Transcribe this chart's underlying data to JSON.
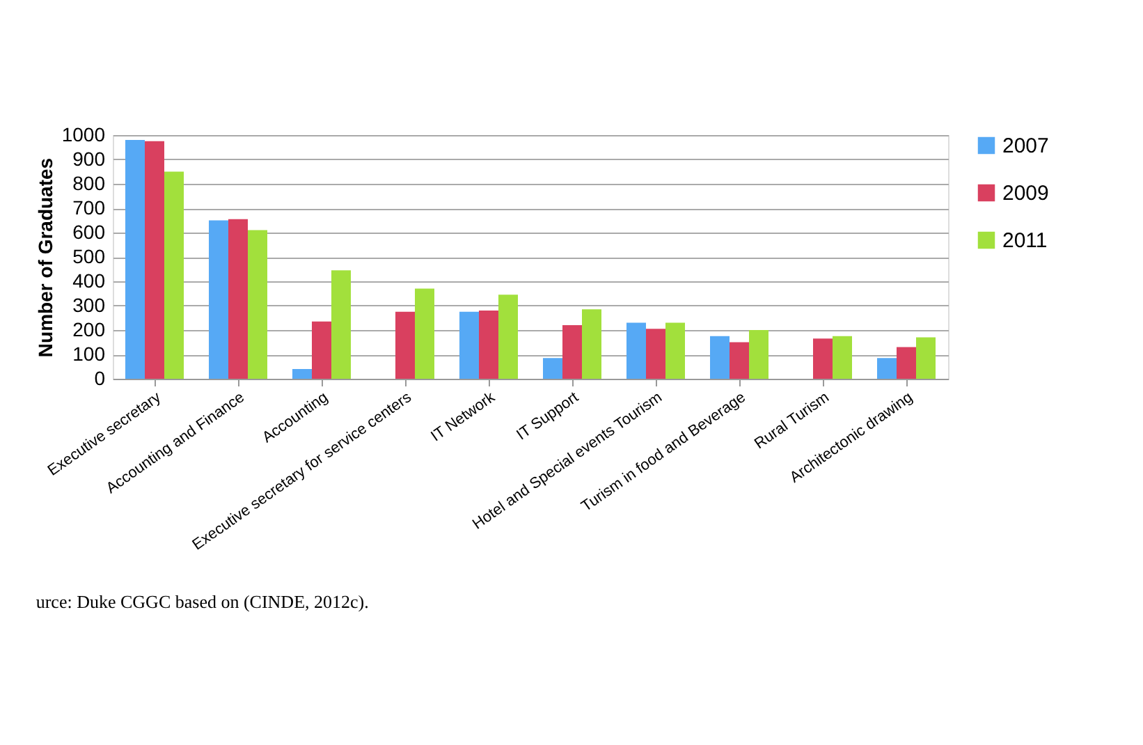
{
  "chart_data": {
    "type": "bar",
    "ylabel": "Number of Graduates",
    "categories": [
      "Executive secretary",
      "Accounting and Finance",
      "Accounting",
      "Executive secretary for service centers",
      "IT Network",
      "IT Support",
      "Hotel and Special events Tourism",
      "Turism in food and Beverage",
      "Rural Turism",
      "Architectonic drawing"
    ],
    "series": [
      {
        "name": "2007",
        "color": "#56a9f5",
        "values": [
          980,
          650,
          40,
          null,
          275,
          85,
          230,
          175,
          null,
          85
        ]
      },
      {
        "name": "2009",
        "color": "#d9405f",
        "values": [
          975,
          655,
          235,
          275,
          280,
          220,
          205,
          150,
          165,
          130
        ]
      },
      {
        "name": "2011",
        "color": "#a2e03c",
        "values": [
          850,
          610,
          445,
          370,
          345,
          285,
          230,
          200,
          175,
          170
        ]
      }
    ],
    "ylim": [
      0,
      1000
    ],
    "yticks": [
      0,
      100,
      200,
      300,
      400,
      500,
      600,
      700,
      800,
      900,
      1000
    ],
    "grid": "y",
    "legend": "right",
    "annotations": [
      "urce: Duke CGGC based on (CINDE, 2012c)."
    ]
  }
}
